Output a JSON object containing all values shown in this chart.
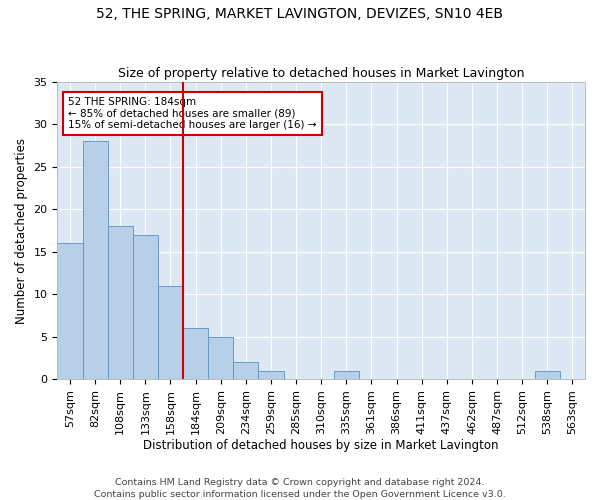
{
  "title1": "52, THE SPRING, MARKET LAVINGTON, DEVIZES, SN10 4EB",
  "title2": "Size of property relative to detached houses in Market Lavington",
  "xlabel": "Distribution of detached houses by size in Market Lavington",
  "ylabel": "Number of detached properties",
  "footnote1": "Contains HM Land Registry data © Crown copyright and database right 2024.",
  "footnote2": "Contains public sector information licensed under the Open Government Licence v3.0.",
  "categories": [
    "57sqm",
    "82sqm",
    "108sqm",
    "133sqm",
    "158sqm",
    "184sqm",
    "209sqm",
    "234sqm",
    "259sqm",
    "285sqm",
    "310sqm",
    "335sqm",
    "361sqm",
    "386sqm",
    "411sqm",
    "437sqm",
    "462sqm",
    "487sqm",
    "512sqm",
    "538sqm",
    "563sqm"
  ],
  "values": [
    16,
    28,
    18,
    17,
    11,
    6,
    5,
    2,
    1,
    0,
    0,
    1,
    0,
    0,
    0,
    0,
    0,
    0,
    0,
    1,
    0
  ],
  "bar_color": "#b8cfe8",
  "bar_edge_color": "#6699cc",
  "highlight_line_color": "#cc0000",
  "annotation_box_color": "#cc0000",
  "bg_color": "#dde8f5",
  "ylim": [
    0,
    35
  ],
  "yticks": [
    0,
    5,
    10,
    15,
    20,
    25,
    30,
    35
  ],
  "title1_fontsize": 10,
  "title2_fontsize": 9,
  "xlabel_fontsize": 8.5,
  "ylabel_fontsize": 8.5,
  "tick_fontsize": 8,
  "annotation_fontsize": 7.5,
  "footnote_fontsize": 6.8
}
